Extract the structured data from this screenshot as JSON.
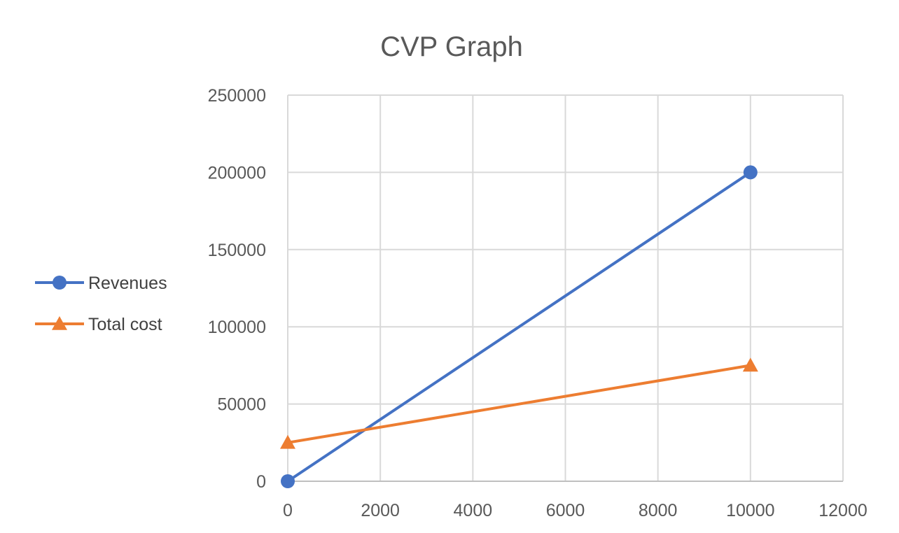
{
  "chart_data": {
    "type": "scatter",
    "title": "CVP Graph",
    "xlabel": "",
    "ylabel": "",
    "xlim": [
      0,
      12000
    ],
    "ylim": [
      0,
      250000
    ],
    "x_ticks": [
      0,
      2000,
      4000,
      6000,
      8000,
      10000,
      12000
    ],
    "y_ticks": [
      0,
      50000,
      100000,
      150000,
      200000,
      250000
    ],
    "grid": true,
    "legend_position": "left",
    "mode": "lines+markers",
    "series": [
      {
        "name": "Revenues",
        "marker": "circle",
        "color": "#4472C4",
        "x": [
          0,
          10000
        ],
        "y": [
          0,
          200000
        ]
      },
      {
        "name": "Total cost",
        "marker": "triangle",
        "color": "#ED7D31",
        "x": [
          0,
          10000
        ],
        "y": [
          25000,
          75000
        ]
      }
    ]
  }
}
